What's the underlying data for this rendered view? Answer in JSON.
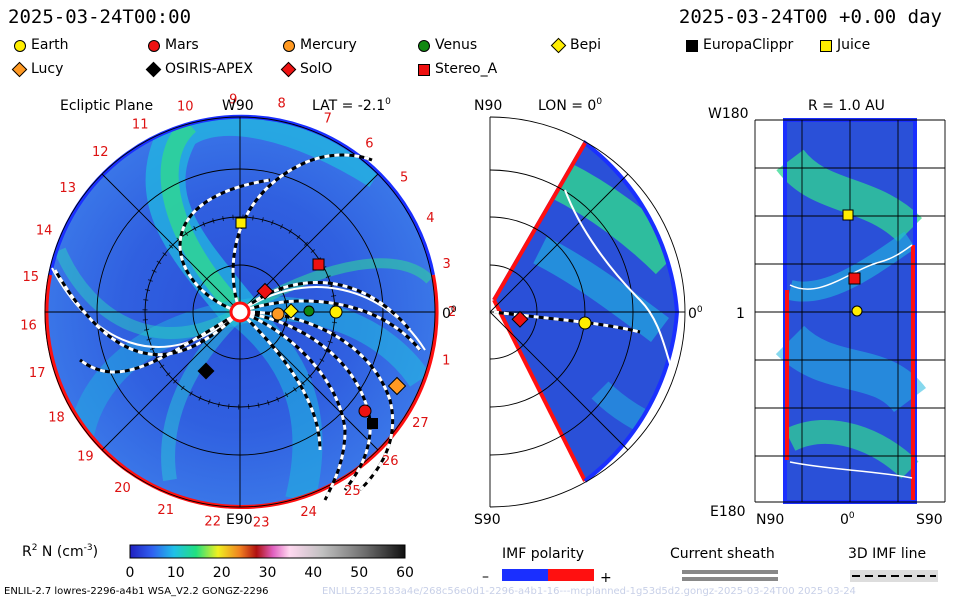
{
  "header": {
    "left_date": "2025-03-24T00:00",
    "right_date": "2025-03-24T00 +0.00 day"
  },
  "legend": [
    {
      "name": "Earth",
      "shape": "circle",
      "color": "#ffee00"
    },
    {
      "name": "Mars",
      "shape": "circle",
      "color": "#ee1111"
    },
    {
      "name": "Mercury",
      "shape": "circle",
      "color": "#ff9922"
    },
    {
      "name": "Venus",
      "shape": "circle",
      "color": "#118811"
    },
    {
      "name": "Bepi",
      "shape": "diamond",
      "color": "#ffee00"
    },
    {
      "name": "EuropaClippr",
      "shape": "square",
      "color": "#000000"
    },
    {
      "name": "Juice",
      "shape": "square",
      "color": "#ffee00"
    },
    {
      "name": "Lucy",
      "shape": "diamond",
      "color": "#ff9922"
    },
    {
      "name": "OSIRIS-APEX",
      "shape": "diamond",
      "color": "#000000"
    },
    {
      "name": "SolO",
      "shape": "diamond",
      "color": "#ee1111"
    },
    {
      "name": "Stereo_A",
      "shape": "square",
      "color": "#ee1111"
    }
  ],
  "ecliptic": {
    "title": "Ecliptic Plane",
    "lat_label": "LAT = -2.1",
    "lat_sup": "0",
    "top_label": "W90",
    "bottom_label": "E90",
    "right_label": "0",
    "right_sup": "0",
    "carrington": [
      "1",
      "2",
      "3",
      "4",
      "5",
      "6",
      "7",
      "8",
      "9",
      "10",
      "11",
      "12",
      "13",
      "14",
      "15",
      "16",
      "17",
      "18",
      "19",
      "20",
      "21",
      "22",
      "23",
      "24",
      "25",
      "26",
      "27"
    ]
  },
  "meridional": {
    "n_label": "N90",
    "s_label": "S90",
    "lon_label": "LON = 0",
    "lon_sup": "0",
    "right_label": "0",
    "right_sup": "0"
  },
  "radial": {
    "title": "R = 1.0 AU",
    "w_label": "W180",
    "e_label": "E180",
    "mid_label": "1",
    "n_label": "N90",
    "zero_label": "0",
    "zero_sup": "0",
    "s_label": "S90"
  },
  "colorbar": {
    "label_prefix": "R",
    "label_sup": "2",
    "label_mid": " N (cm",
    "label_sup2": "-3",
    "label_end": ")",
    "ticks": [
      "0",
      "10",
      "20",
      "30",
      "40",
      "50",
      "60"
    ]
  },
  "imf": {
    "title": "IMF polarity",
    "minus": "–",
    "plus": "+"
  },
  "sheath": {
    "title": "Current sheath"
  },
  "imf3d": {
    "title": "3D IMF line"
  },
  "footer": {
    "left": "ENLIL-2.7 lowres-2296-a4b1 WSA_V2.2 GONGZ-2296",
    "right": "ENLIL52325183a4e/268c56e0d1-2296-a4b1-16---mcplanned-1g53d5d2.gongz-2025-03-24T00   2025-03-24"
  }
}
